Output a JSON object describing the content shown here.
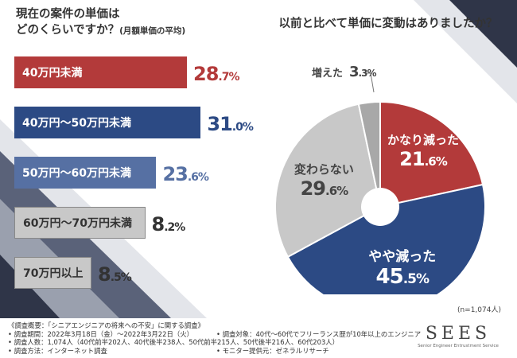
{
  "left_title": {
    "line1": "現在の案件の単価は",
    "line2": "どのくらいですか？",
    "note": "(月額単価の平均)"
  },
  "right_title": "以前と比べて単価に変動はありましたか？",
  "colors": {
    "red": "#b33a3a",
    "navy": "#2c4a84",
    "steel": "#5670a3",
    "lightgray": "#c8c8c8",
    "gray": "#a8a8a8",
    "white": "#ffffff"
  },
  "chart_data": [
    {
      "type": "bar",
      "orientation": "horizontal",
      "categories": [
        "40万円未満",
        "40万円〜50万円未満",
        "50万円〜60万円未満",
        "60万円〜70万円未満",
        "70万円以上"
      ],
      "values": [
        28.7,
        31.0,
        23.6,
        8.2,
        8.5
      ],
      "value_labels": [
        {
          "int": "28",
          "dec": ".7%"
        },
        {
          "int": "31",
          "dec": ".0%"
        },
        {
          "int": "23",
          "dec": ".6%"
        },
        {
          "int": "8",
          "dec": ".2%"
        },
        {
          "int": "8",
          "dec": ".5%"
        }
      ],
      "xlim": [
        0,
        35
      ]
    },
    {
      "type": "pie",
      "slices": [
        {
          "label": "かなり減った",
          "value": 21.6,
          "int": "21",
          "dec": ".6%"
        },
        {
          "label": "やや減った",
          "value": 45.5,
          "int": "45",
          "dec": ".5%"
        },
        {
          "label": "変わらない",
          "value": 29.6,
          "int": "29",
          "dec": ".6%"
        },
        {
          "label": "増えた",
          "value": 3.3,
          "int": "3",
          "dec": ".3%"
        }
      ],
      "donut_hole": true
    }
  ],
  "n_note": "(n=1,074人)",
  "survey": {
    "heading": "《調査概要：「シニアエンジニアの将来への不安」に関する調査》",
    "period": "• 調査期間：2022年3月18日（金）〜2022年3月22日（火）",
    "people": "• 調査人数：1,074人（40代前半202人、40代後半238人、50代前半215人、50代後半216人、60代203人）",
    "method": "• 調査方法：インターネット調査",
    "target": "• 調査対象：40代〜60代でフリーランス歴が10年以上のエンジニア",
    "provider": "• モニター提供元：ゼネラルリサーチ"
  },
  "logo": {
    "mark": "SEES",
    "sub": "Senior Engineer Entrustment Service"
  }
}
